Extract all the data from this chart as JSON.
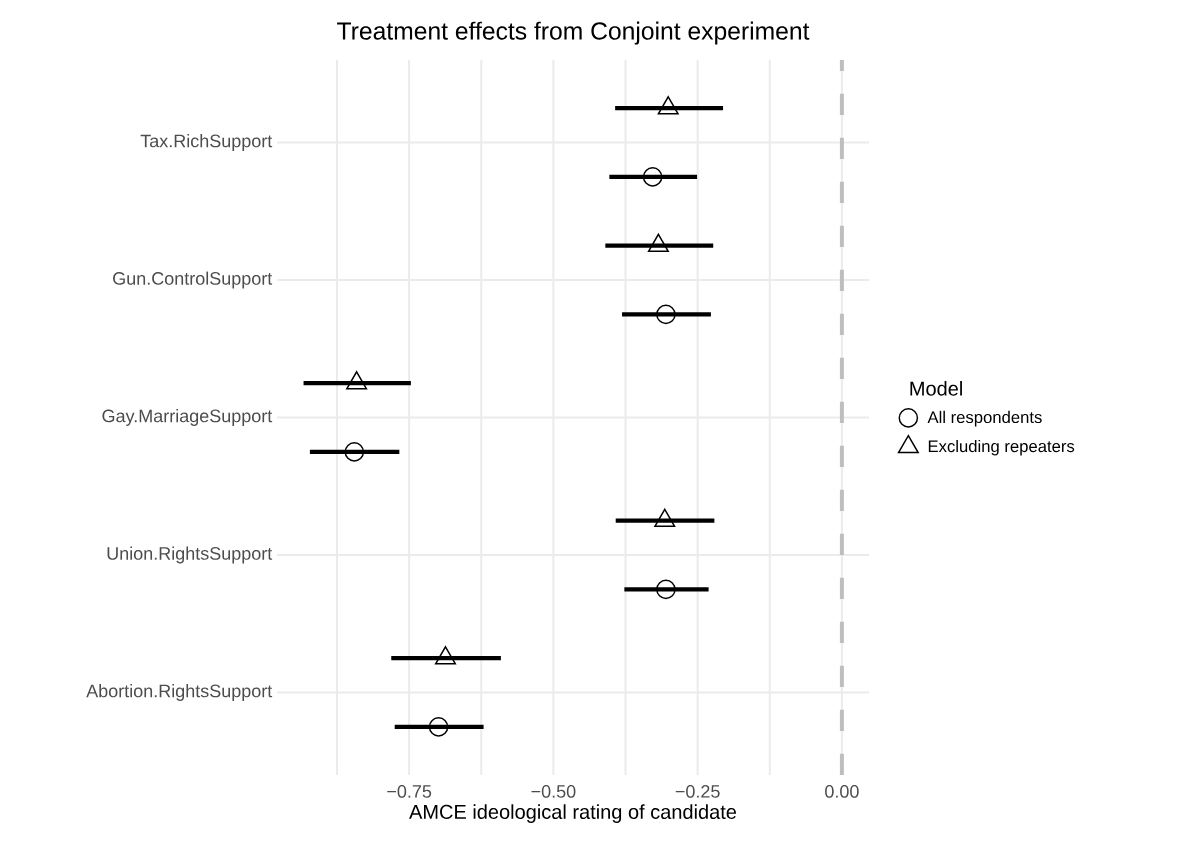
{
  "chart_data": {
    "type": "scatter",
    "title": "Treatment effects from Conjoint experiment",
    "xlabel": "AMCE ideological rating of candidate",
    "legend_title": "Model",
    "orientation": "horizontal",
    "categories": [
      "Tax.RichSupport",
      "Gun.ControlSupport",
      "Gay.MarriageSupport",
      "Union.RightsSupport",
      "Abortion.RightsSupport"
    ],
    "xlim": [
      -0.979,
      0.047
    ],
    "xticks": [
      {
        "value": -0.875,
        "label": null
      },
      {
        "value": -0.75,
        "label": "−0.75"
      },
      {
        "value": -0.625,
        "label": null
      },
      {
        "value": -0.5,
        "label": "−0.50"
      },
      {
        "value": -0.375,
        "label": null
      },
      {
        "value": -0.25,
        "label": "−0.25"
      },
      {
        "value": -0.125,
        "label": null
      },
      {
        "value": 0,
        "label": "0.00"
      }
    ],
    "grid": true,
    "legend": "right",
    "ref_lines": [
      {
        "axis": "x",
        "value": 0,
        "color": "#bebebe",
        "line_style": "dashed"
      }
    ],
    "series": [
      {
        "name": "All respondents",
        "color": "#000000",
        "marker": "circle",
        "values": [
          -0.328,
          -0.305,
          -0.845,
          -0.305,
          -0.699
        ],
        "errors": [
          [
            -0.403,
            -0.251
          ],
          [
            -0.381,
            -0.227
          ],
          [
            -0.922,
            -0.767
          ],
          [
            -0.377,
            -0.231
          ],
          [
            -0.775,
            -0.621
          ]
        ]
      },
      {
        "name": "Excluding repeaters",
        "color": "#000000",
        "marker": "triangle",
        "values": [
          -0.301,
          -0.318,
          -0.841,
          -0.307,
          -0.687
        ],
        "errors": [
          [
            -0.393,
            -0.206
          ],
          [
            -0.41,
            -0.223
          ],
          [
            -0.933,
            -0.747
          ],
          [
            -0.392,
            -0.221
          ],
          [
            -0.781,
            -0.591
          ]
        ]
      }
    ]
  }
}
